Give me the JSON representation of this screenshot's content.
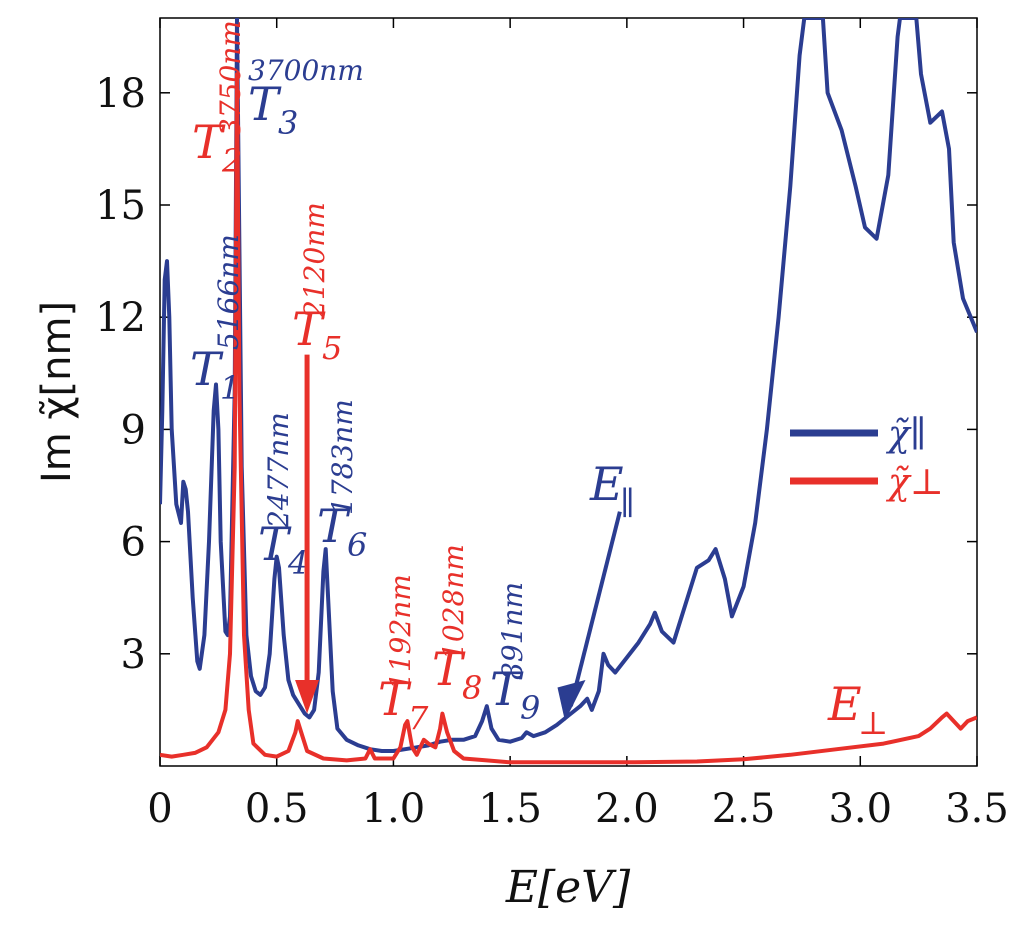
{
  "chart_data": {
    "type": "line",
    "xlabel": "E[eV]",
    "ylabel": "Im χ̃[nm]",
    "xlim": [
      0,
      3.5
    ],
    "ylim": [
      0,
      20
    ],
    "xticks": [
      "0",
      "0.5",
      "1.0",
      "1.5",
      "2.0",
      "2.5",
      "3.0",
      "3.5"
    ],
    "yticks": [
      "3",
      "6",
      "9",
      "12",
      "15",
      "18"
    ],
    "grid": false,
    "legend_position": "right",
    "colors": {
      "parallel": "#2b3d91",
      "perp": "#e8302a"
    },
    "series": [
      {
        "name": "χ̃∥",
        "color": "#2b3d91",
        "points": [
          [
            0.0,
            7.0
          ],
          [
            0.01,
            9.5
          ],
          [
            0.02,
            13.0
          ],
          [
            0.03,
            13.5
          ],
          [
            0.04,
            12.0
          ],
          [
            0.05,
            9.0
          ],
          [
            0.07,
            7.0
          ],
          [
            0.09,
            6.5
          ],
          [
            0.1,
            7.6
          ],
          [
            0.11,
            7.4
          ],
          [
            0.12,
            6.8
          ],
          [
            0.14,
            4.5
          ],
          [
            0.16,
            2.8
          ],
          [
            0.17,
            2.6
          ],
          [
            0.19,
            3.5
          ],
          [
            0.21,
            6.0
          ],
          [
            0.23,
            9.5
          ],
          [
            0.24,
            10.2
          ],
          [
            0.25,
            9.0
          ],
          [
            0.26,
            6.0
          ],
          [
            0.28,
            3.6
          ],
          [
            0.29,
            3.5
          ],
          [
            0.3,
            4.0
          ],
          [
            0.32,
            10.0
          ],
          [
            0.33,
            20.0
          ],
          [
            0.35,
            8.0
          ],
          [
            0.37,
            3.5
          ],
          [
            0.39,
            2.4
          ],
          [
            0.41,
            2.0
          ],
          [
            0.43,
            1.9
          ],
          [
            0.45,
            2.1
          ],
          [
            0.47,
            3.0
          ],
          [
            0.49,
            5.0
          ],
          [
            0.5,
            5.6
          ],
          [
            0.51,
            5.3
          ],
          [
            0.53,
            3.5
          ],
          [
            0.55,
            2.3
          ],
          [
            0.57,
            1.9
          ],
          [
            0.6,
            1.6
          ],
          [
            0.62,
            1.4
          ],
          [
            0.64,
            1.3
          ],
          [
            0.66,
            1.5
          ],
          [
            0.68,
            2.5
          ],
          [
            0.7,
            5.2
          ],
          [
            0.71,
            5.8
          ],
          [
            0.72,
            4.5
          ],
          [
            0.74,
            2.0
          ],
          [
            0.76,
            1.0
          ],
          [
            0.8,
            0.7
          ],
          [
            0.85,
            0.55
          ],
          [
            0.9,
            0.45
          ],
          [
            0.95,
            0.4
          ],
          [
            1.0,
            0.4
          ],
          [
            1.05,
            0.45
          ],
          [
            1.1,
            0.5
          ],
          [
            1.15,
            0.55
          ],
          [
            1.2,
            0.65
          ],
          [
            1.25,
            0.7
          ],
          [
            1.3,
            0.7
          ],
          [
            1.35,
            0.8
          ],
          [
            1.38,
            1.2
          ],
          [
            1.4,
            1.6
          ],
          [
            1.42,
            1.0
          ],
          [
            1.45,
            0.7
          ],
          [
            1.5,
            0.65
          ],
          [
            1.55,
            0.75
          ],
          [
            1.57,
            0.9
          ],
          [
            1.6,
            0.8
          ],
          [
            1.65,
            0.9
          ],
          [
            1.7,
            1.1
          ],
          [
            1.75,
            1.35
          ],
          [
            1.8,
            1.6
          ],
          [
            1.83,
            1.8
          ],
          [
            1.85,
            1.5
          ],
          [
            1.88,
            2.0
          ],
          [
            1.9,
            3.0
          ],
          [
            1.92,
            2.7
          ],
          [
            1.95,
            2.5
          ],
          [
            2.0,
            2.9
          ],
          [
            2.05,
            3.3
          ],
          [
            2.1,
            3.8
          ],
          [
            2.12,
            4.1
          ],
          [
            2.15,
            3.6
          ],
          [
            2.2,
            3.3
          ],
          [
            2.25,
            4.3
          ],
          [
            2.3,
            5.3
          ],
          [
            2.35,
            5.5
          ],
          [
            2.38,
            5.8
          ],
          [
            2.42,
            5.0
          ],
          [
            2.45,
            4.0
          ],
          [
            2.5,
            4.8
          ],
          [
            2.55,
            6.5
          ],
          [
            2.6,
            9.0
          ],
          [
            2.65,
            12.0
          ],
          [
            2.7,
            15.5
          ],
          [
            2.74,
            19.0
          ],
          [
            2.76,
            20.0
          ],
          [
            2.84,
            20.0
          ],
          [
            2.86,
            18.0
          ],
          [
            2.92,
            17.0
          ],
          [
            2.98,
            15.5
          ],
          [
            3.02,
            14.4
          ],
          [
            3.07,
            14.1
          ],
          [
            3.12,
            15.8
          ],
          [
            3.16,
            19.5
          ],
          [
            3.17,
            20.0
          ],
          [
            3.24,
            20.0
          ],
          [
            3.26,
            18.5
          ],
          [
            3.3,
            17.2
          ],
          [
            3.35,
            17.5
          ],
          [
            3.38,
            16.5
          ],
          [
            3.4,
            14.0
          ],
          [
            3.44,
            12.5
          ],
          [
            3.5,
            11.6
          ]
        ]
      },
      {
        "name": "χ̃⊥",
        "color": "#e8302a",
        "points": [
          [
            0.0,
            0.3
          ],
          [
            0.05,
            0.25
          ],
          [
            0.1,
            0.3
          ],
          [
            0.15,
            0.35
          ],
          [
            0.2,
            0.5
          ],
          [
            0.25,
            0.9
          ],
          [
            0.28,
            1.5
          ],
          [
            0.3,
            3.0
          ],
          [
            0.32,
            8.0
          ],
          [
            0.33,
            18.5
          ],
          [
            0.34,
            10.0
          ],
          [
            0.36,
            3.5
          ],
          [
            0.38,
            1.5
          ],
          [
            0.4,
            0.6
          ],
          [
            0.45,
            0.3
          ],
          [
            0.5,
            0.25
          ],
          [
            0.55,
            0.4
          ],
          [
            0.58,
            0.9
          ],
          [
            0.59,
            1.2
          ],
          [
            0.61,
            0.8
          ],
          [
            0.63,
            0.4
          ],
          [
            0.7,
            0.2
          ],
          [
            0.8,
            0.15
          ],
          [
            0.88,
            0.2
          ],
          [
            0.9,
            0.45
          ],
          [
            0.92,
            0.2
          ],
          [
            1.0,
            0.2
          ],
          [
            1.03,
            0.5
          ],
          [
            1.05,
            1.1
          ],
          [
            1.06,
            1.2
          ],
          [
            1.08,
            0.5
          ],
          [
            1.1,
            0.3
          ],
          [
            1.13,
            0.7
          ],
          [
            1.15,
            0.6
          ],
          [
            1.18,
            0.5
          ],
          [
            1.2,
            1.0
          ],
          [
            1.21,
            1.4
          ],
          [
            1.23,
            0.9
          ],
          [
            1.26,
            0.4
          ],
          [
            1.3,
            0.2
          ],
          [
            1.4,
            0.15
          ],
          [
            1.5,
            0.1
          ],
          [
            1.7,
            0.1
          ],
          [
            2.0,
            0.1
          ],
          [
            2.3,
            0.12
          ],
          [
            2.5,
            0.18
          ],
          [
            2.7,
            0.3
          ],
          [
            2.9,
            0.45
          ],
          [
            3.1,
            0.6
          ],
          [
            3.25,
            0.8
          ],
          [
            3.3,
            1.0
          ],
          [
            3.35,
            1.3
          ],
          [
            3.37,
            1.4
          ],
          [
            3.4,
            1.2
          ],
          [
            3.43,
            1.0
          ],
          [
            3.46,
            1.2
          ],
          [
            3.5,
            1.3
          ]
        ]
      }
    ],
    "annotations": [
      {
        "label": "T",
        "sub": "1",
        "wavelength": "5166nm",
        "color": "blue"
      },
      {
        "label": "T",
        "sub": "2",
        "wavelength": "3750nm",
        "color": "red"
      },
      {
        "label": "T",
        "sub": "3",
        "wavelength": "3700nm",
        "color": "blue"
      },
      {
        "label": "T",
        "sub": "4",
        "wavelength": "2477nm",
        "color": "blue"
      },
      {
        "label": "T",
        "sub": "5",
        "wavelength": "2120nm",
        "color": "red"
      },
      {
        "label": "T",
        "sub": "6",
        "wavelength": "1783nm",
        "color": "blue"
      },
      {
        "label": "T",
        "sub": "7",
        "wavelength": "1192nm",
        "color": "red"
      },
      {
        "label": "T",
        "sub": "8",
        "wavelength": "1028nm",
        "color": "red"
      },
      {
        "label": "T",
        "sub": "9",
        "wavelength": "891nm",
        "color": "blue"
      },
      {
        "label": "E",
        "sub": "∥",
        "color": "blue"
      },
      {
        "label": "E",
        "sub": "⊥",
        "color": "red"
      }
    ]
  }
}
